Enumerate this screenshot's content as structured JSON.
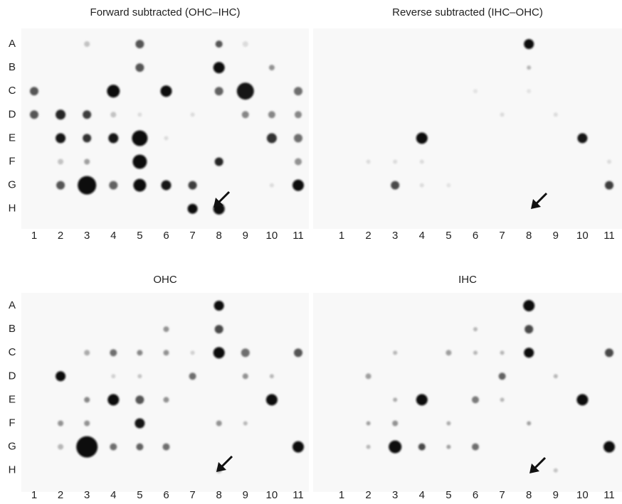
{
  "panels": [
    {
      "title": "Forward subtracted (OHC–IHC)",
      "row_labels": [
        "A",
        "B",
        "C",
        "D",
        "E",
        "F",
        "G",
        "H"
      ],
      "column_labels": [
        "1",
        "2",
        "3",
        "4",
        "5",
        "6",
        "7",
        "8",
        "9",
        "10",
        "11"
      ]
    },
    {
      "title": "Reverse subtracted (IHC–OHC)",
      "column_labels": [
        "1",
        "2",
        "3",
        "4",
        "5",
        "6",
        "7",
        "8",
        "9",
        "10",
        "11"
      ]
    },
    {
      "title": "OHC",
      "row_labels": [
        "A",
        "B",
        "C",
        "D",
        "E",
        "F",
        "G",
        "H"
      ],
      "column_labels": [
        "1",
        "2",
        "3",
        "4",
        "5",
        "6",
        "7",
        "8",
        "9",
        "10",
        "11"
      ]
    },
    {
      "title": "IHC",
      "column_labels": [
        "1",
        "2",
        "3",
        "4",
        "5",
        "6",
        "7",
        "8",
        "9",
        "10",
        "11"
      ]
    }
  ]
}
